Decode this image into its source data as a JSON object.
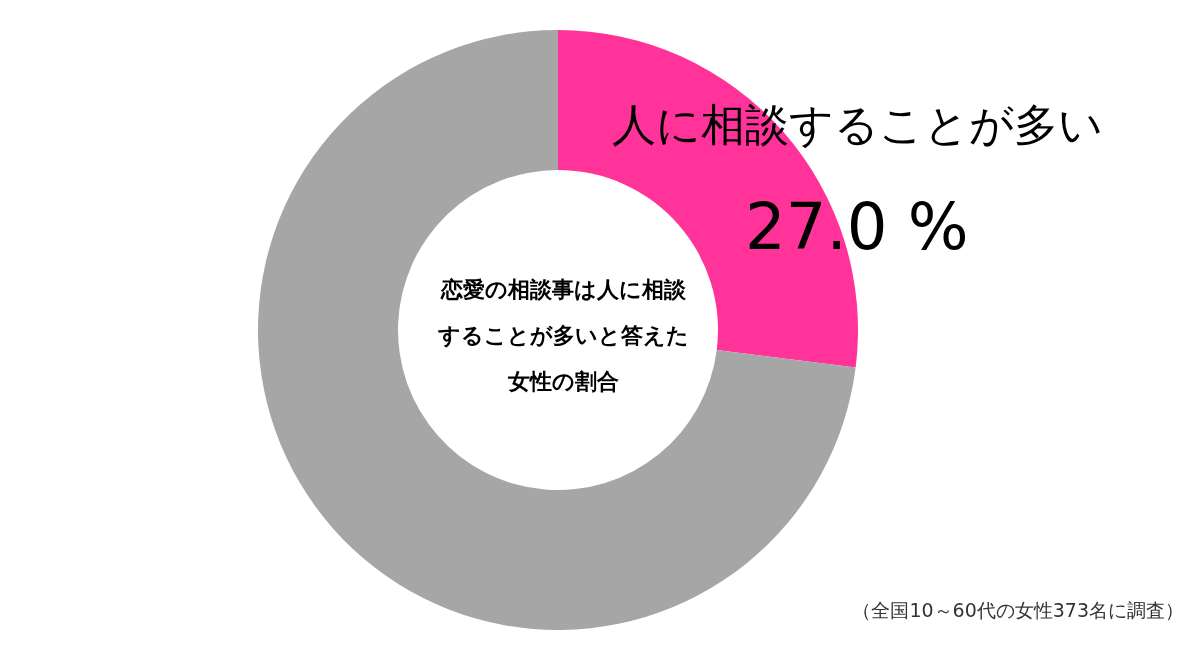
{
  "chart_data": {
    "type": "donut",
    "title": "恋愛の相談事は人に相談することが多いと答えた女性の割合",
    "categories": [
      "人に相談することが多い",
      null
    ],
    "values": [
      27.0,
      73.0
    ],
    "colors": [
      "#ff3399",
      "#a6a6a6"
    ],
    "value_labels": [
      "27.0 %",
      null
    ],
    "annotations": [
      "（全国10～60代の女性373名に調査）"
    ]
  }
}
